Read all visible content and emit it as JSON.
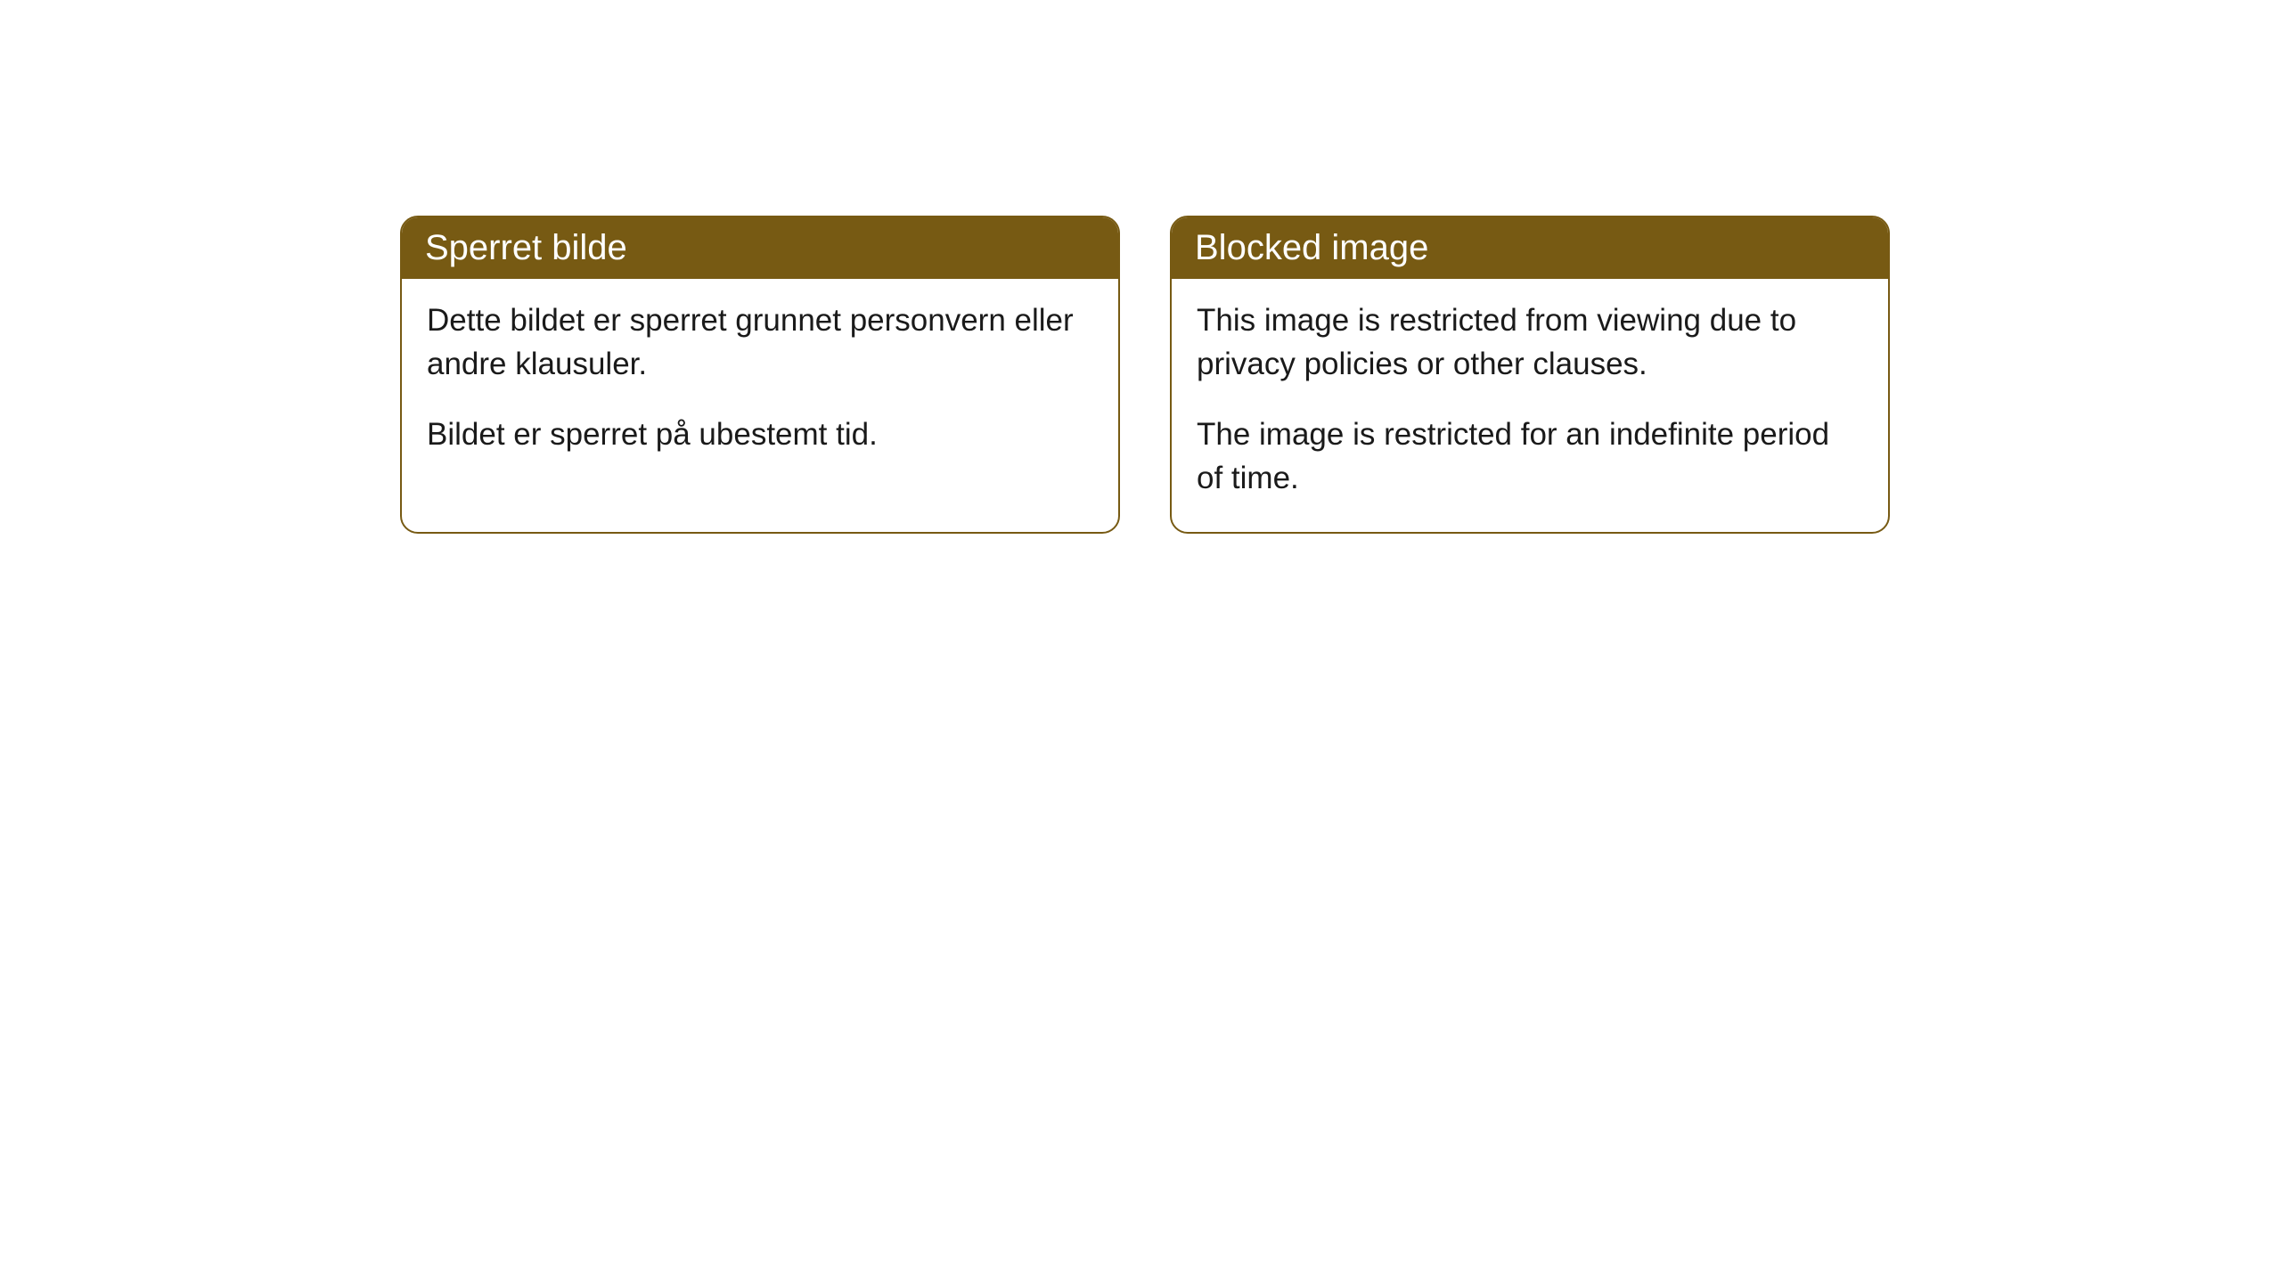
{
  "cards": [
    {
      "title": "Sperret bilde",
      "paragraph1": "Dette bildet er sperret grunnet personvern eller andre klausuler.",
      "paragraph2": "Bildet er sperret på ubestemt tid."
    },
    {
      "title": "Blocked image",
      "paragraph1": "This image is restricted from viewing due to privacy policies or other clauses.",
      "paragraph2": "The image is restricted for an indefinite period of time."
    }
  ],
  "styling": {
    "header_background": "#775a13",
    "header_text_color": "#ffffff",
    "border_color": "#775a13",
    "body_text_color": "#1a1a1a",
    "card_background": "#ffffff",
    "page_background": "#ffffff",
    "border_radius": 20,
    "header_fontsize": 40,
    "body_fontsize": 35
  }
}
